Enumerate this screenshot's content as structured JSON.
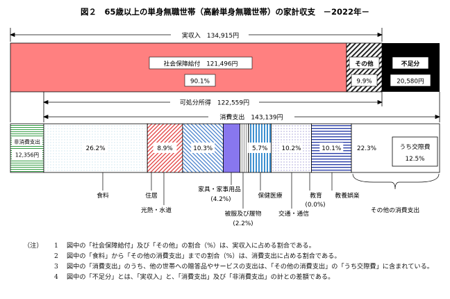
{
  "title": "図２　65歳以上の単身無職世帯（高齢単身無職世帯）の家計収支　－2022年－",
  "chart_data": {
    "type": "bar",
    "title": "図２　65歳以上の単身無職世帯（高齢単身無職世帯）の家計収支　－2022年－",
    "top_bar": {
      "segments": [
        {
          "label": "社会保障給付",
          "amount": "121,496円",
          "pct_label": "90.1%",
          "pct": 90.1,
          "color": "#ff8080"
        },
        {
          "label": "その他",
          "pct_label": "9.9%",
          "pct": 9.9
        },
        {
          "label": "不足分",
          "amount": "20,580円",
          "color": "#000000"
        }
      ]
    },
    "brackets": {
      "income": {
        "label": "実収入",
        "value": "134,915円"
      },
      "disposable": {
        "label": "可処分所得",
        "value": "122,559円"
      },
      "consumption": {
        "label": "消費支出",
        "value": "143,139円"
      }
    },
    "bottom_bar": {
      "non_consumption": {
        "label": "非消費支出",
        "value": "12,356円"
      },
      "segments": [
        {
          "name": "食料",
          "pct_label": "26.2%",
          "pct": 26.2
        },
        {
          "name": "住居",
          "pct_label": "8.9%",
          "pct": 8.9
        },
        {
          "name": "光熱・水道",
          "pct_label": "10.3%",
          "pct": 10.3
        },
        {
          "name": "家具・家事用品",
          "sub": "(4.2%)",
          "pct": 4.2
        },
        {
          "name": "被服及び履物",
          "sub": "(2.2%)",
          "pct": 2.2
        },
        {
          "name": "保健医療",
          "pct_label": "5.7%",
          "pct": 5.7
        },
        {
          "name": "交通・通信",
          "pct_label": "10.2%",
          "pct": 10.2
        },
        {
          "name": "教育",
          "sub": "(0.0%)",
          "pct": 0.0
        },
        {
          "name": "教養娯楽",
          "pct_label": "10.1%",
          "pct": 10.1
        },
        {
          "name": "その他の消費支出",
          "pct_label": "22.3%",
          "pct": 22.3,
          "inner_label": "うち交際費",
          "inner_pct_label": "12.5%"
        }
      ]
    }
  },
  "notes": {
    "head": "（注）",
    "items": [
      {
        "num": "1",
        "text": "図中の「社会保障給付」及び「その他」の割合（%）は、実収入に占める割合である。"
      },
      {
        "num": "2",
        "text": "図中の「食料」から「その他の消費支出」までの割合（%）は、消費支出に占める割合である。"
      },
      {
        "num": "3",
        "text": "図中の「消費支出」のうち、他の世帯への贈答品やサービスの支出は、「その他の消費支出」の「うち交際費」に含まれている。"
      },
      {
        "num": "4",
        "text": "図中の「不足分」とは、「実収入」と、「消費支出」及び「非消費支出」の計との差額である。"
      }
    ]
  }
}
